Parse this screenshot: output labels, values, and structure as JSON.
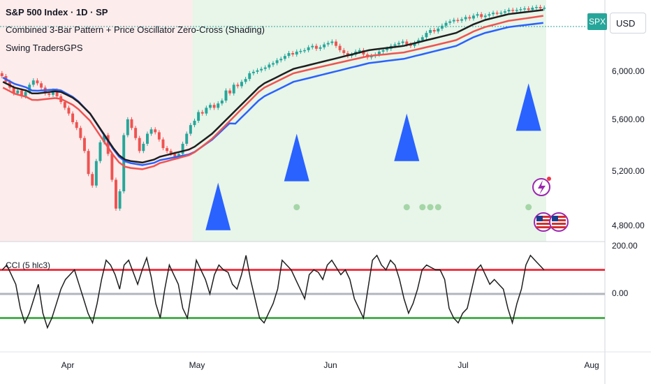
{
  "header": {
    "symbol_title": "S&P 500 Index · 1D · SP",
    "indicator_1": "Combined 3-Bar Pattern + Price Oscillator Zero-Cross (Shading)",
    "indicator_2": "Swing TradersGPS",
    "cci_label": "CCI (5 hlc3)",
    "symbol_badge": "SPX",
    "currency": "USD"
  },
  "colors": {
    "up": "#26a69a",
    "down": "#ef5350",
    "ma_fast": "#1e1e1e",
    "ma_mid": "#f05350",
    "ma_slow": "#2962ff",
    "triangle": "#2962ff",
    "shade_red": "#fdecec",
    "shade_green": "#e8f5e9",
    "cci_upper": "#f23645",
    "cci_mid": "#b2b5be",
    "cci_lower": "#4caf50"
  },
  "price_axis": {
    "ticks": [
      "6,000.00",
      "5,600.00",
      "5,200.00",
      "4,800.00"
    ]
  },
  "cci_axis": {
    "ticks": [
      "200.00",
      "0.00"
    ]
  },
  "time_axis": {
    "labels": [
      "Apr",
      "May",
      "Jun",
      "Jul",
      "Aug"
    ]
  },
  "chart_data": {
    "type": "candlestick",
    "yrange_price": [
      4700,
      6300
    ],
    "yrange_cci": [
      -200,
      200
    ],
    "cci_levels": [
      100,
      0,
      -100
    ],
    "shading": [
      {
        "start": 0,
        "end": 48,
        "color": "red"
      },
      {
        "start": 49,
        "end": 160,
        "color": "green"
      }
    ],
    "triangles": [
      {
        "index": 55,
        "value": 4780
      },
      {
        "index": 75,
        "value": 5120
      },
      {
        "index": 103,
        "value": 5260
      },
      {
        "index": 134,
        "value": 5470
      }
    ],
    "dots": [
      {
        "index": 75,
        "value": 4910
      },
      {
        "index": 103,
        "value": 4910
      },
      {
        "index": 107,
        "value": 4910
      },
      {
        "index": 109,
        "value": 4910
      },
      {
        "index": 111,
        "value": 4910
      },
      {
        "index": 134,
        "value": 4910
      }
    ],
    "candles_close": [
      5820,
      5780,
      5740,
      5700,
      5720,
      5680,
      5710,
      5760,
      5790,
      5770,
      5740,
      5700,
      5690,
      5720,
      5680,
      5640,
      5600,
      5560,
      5500,
      5460,
      5390,
      5300,
      5140,
      5060,
      5230,
      5360,
      5410,
      5280,
      5100,
      4900,
      5020,
      5410,
      5520,
      5460,
      5390,
      5300,
      5350,
      5420,
      5450,
      5430,
      5380,
      5320,
      5300,
      5280,
      5260,
      5280,
      5350,
      5420,
      5480,
      5510,
      5570,
      5560,
      5600,
      5620,
      5600,
      5630,
      5650,
      5720,
      5700,
      5760,
      5750,
      5780,
      5800,
      5840,
      5850,
      5860,
      5870,
      5880,
      5900,
      5910,
      5930,
      5940,
      5960,
      5980,
      5970,
      5990,
      5995,
      6000,
      6020,
      6030,
      6010,
      6020,
      6040,
      6050,
      6060,
      6030,
      6000,
      5980,
      5960,
      5970,
      5990,
      6000,
      5970,
      5950,
      5960,
      5970,
      5990,
      6000,
      6010,
      6030,
      6040,
      6050,
      6060,
      6040,
      6030,
      6050,
      6070,
      6090,
      6120,
      6140,
      6130,
      6150,
      6170,
      6190,
      6200,
      6210,
      6205,
      6215,
      6230,
      6220,
      6240,
      6250,
      6230,
      6240,
      6250,
      6260,
      6255,
      6260,
      6270,
      6280,
      6275,
      6280,
      6285,
      6290,
      6280,
      6295,
      6300,
      6290,
      6295
    ],
    "cci_values": [
      100,
      120,
      80,
      40,
      -60,
      -120,
      -80,
      -20,
      40,
      -80,
      -140,
      -100,
      -40,
      20,
      60,
      80,
      100,
      40,
      -20,
      -80,
      -120,
      -40,
      60,
      140,
      120,
      80,
      20,
      120,
      140,
      90,
      40,
      100,
      150,
      70,
      -40,
      -100,
      20,
      120,
      80,
      40,
      -60,
      -100,
      20,
      140,
      100,
      60,
      0,
      80,
      120,
      100,
      90,
      40,
      20,
      80,
      160,
      60,
      -20,
      -100,
      -120,
      -80,
      -40,
      20,
      140,
      120,
      100,
      60,
      20,
      -20,
      80,
      100,
      90,
      60,
      120,
      140,
      110,
      80,
      100,
      60,
      -20,
      -60,
      -100,
      20,
      140,
      160,
      120,
      100,
      140,
      120,
      60,
      -20,
      -80,
      -40,
      20,
      100,
      120,
      110,
      100,
      100,
      60,
      -60,
      -100,
      -120,
      -80,
      -60,
      20,
      100,
      120,
      80,
      40,
      60,
      40,
      20,
      -60,
      -120,
      -40,
      20,
      120,
      160,
      140,
      120,
      100
    ],
    "ma_fast": [
      5780,
      5760,
      5740,
      5730,
      5720,
      5700,
      5700,
      5705,
      5710,
      5715,
      5710,
      5690,
      5670,
      5640,
      5600,
      5560,
      5500,
      5440,
      5380,
      5320,
      5270,
      5240,
      5230,
      5225,
      5220,
      5230,
      5240,
      5260,
      5270,
      5280,
      5290,
      5300,
      5310,
      5330,
      5360,
      5390,
      5420,
      5460,
      5500,
      5540,
      5580,
      5620,
      5660,
      5700,
      5740,
      5770,
      5790,
      5810,
      5830,
      5850,
      5870,
      5880,
      5890,
      5900,
      5910,
      5920,
      5930,
      5940,
      5950,
      5960,
      5970,
      5980,
      5990,
      6000,
      6005,
      6010,
      6015,
      6020,
      6025,
      6030,
      6040,
      6050,
      6060,
      6070,
      6080,
      6090,
      6100,
      6110,
      6120,
      6140,
      6160,
      6180,
      6195,
      6210,
      6220,
      6230,
      6240,
      6250,
      6255,
      6260,
      6265,
      6270,
      6275,
      6280
    ]
  }
}
